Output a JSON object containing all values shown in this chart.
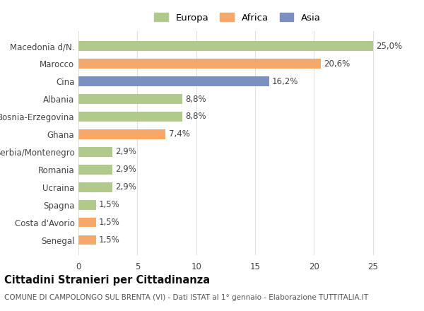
{
  "categories": [
    "Senegal",
    "Costa d'Avorio",
    "Spagna",
    "Ucraina",
    "Romania",
    "Serbia/Montenegro",
    "Ghana",
    "Bosnia-Erzegovina",
    "Albania",
    "Cina",
    "Marocco",
    "Macedonia d/N."
  ],
  "values": [
    1.5,
    1.5,
    1.5,
    2.9,
    2.9,
    2.9,
    7.4,
    8.8,
    8.8,
    16.2,
    20.6,
    25.0
  ],
  "labels": [
    "1,5%",
    "1,5%",
    "1,5%",
    "2,9%",
    "2,9%",
    "2,9%",
    "7,4%",
    "8,8%",
    "8,8%",
    "16,2%",
    "20,6%",
    "25,0%"
  ],
  "colors": [
    "#F5A86A",
    "#F5A86A",
    "#AFCA8B",
    "#AFCA8B",
    "#AFCA8B",
    "#AFCA8B",
    "#F5A86A",
    "#AFCA8B",
    "#AFCA8B",
    "#7B8FC0",
    "#F5A86A",
    "#AFCA8B"
  ],
  "legend": {
    "Europa": "#AFCA8B",
    "Africa": "#F5A86A",
    "Asia": "#7B8FC0"
  },
  "title": "Cittadini Stranieri per Cittadinanza",
  "subtitle": "COMUNE DI CAMPOLONGO SUL BRENTA (VI) - Dati ISTAT al 1° gennaio - Elaborazione TUTTITALIA.IT",
  "xlim": [
    0,
    27
  ],
  "xticks": [
    0,
    5,
    10,
    15,
    20,
    25
  ],
  "background_color": "#ffffff",
  "grid_color": "#e0e0e0",
  "bar_height": 0.55,
  "label_fontsize": 8.5,
  "title_fontsize": 10.5,
  "subtitle_fontsize": 7.5,
  "tick_fontsize": 8.5,
  "legend_fontsize": 9.5
}
